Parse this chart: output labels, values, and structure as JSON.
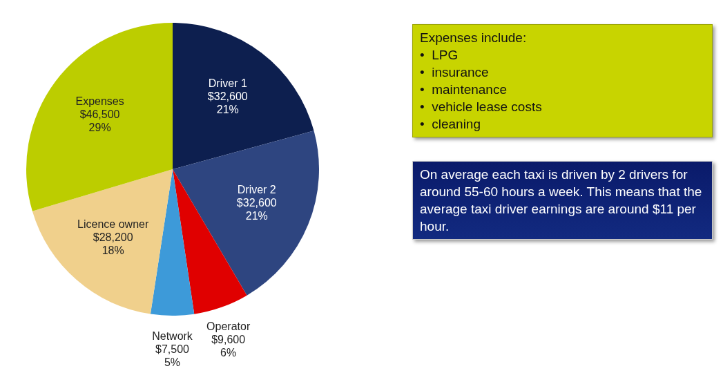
{
  "chart_data": {
    "type": "pie",
    "categories": [
      "Driver 1",
      "Driver 2",
      "Operator",
      "Network",
      "Licence owner",
      "Expenses"
    ],
    "values": [
      32600,
      32600,
      9600,
      7500,
      28200,
      46500
    ],
    "value_labels": [
      "$32,600\n21%",
      "$32,600\n21%",
      "$9,600\n6%",
      "$7,500\n5%",
      "$28,200\n18%",
      "$46,500\n29%"
    ],
    "colors": [
      "#0d1f4f",
      "#2e4580",
      "#e00000",
      "#3d9ad9",
      "#f0d08c",
      "#bccd00"
    ],
    "legend": false,
    "annotations": [
      "Expenses include:\n•  LPG\n•  insurance\n•  maintenance\n•  vehicle lease costs\n•  cleaning",
      "On average each taxi is driven by 2 drivers for around 55-60 hours a week. This means that the average taxi driver earnings are around $11 per hour."
    ]
  }
}
